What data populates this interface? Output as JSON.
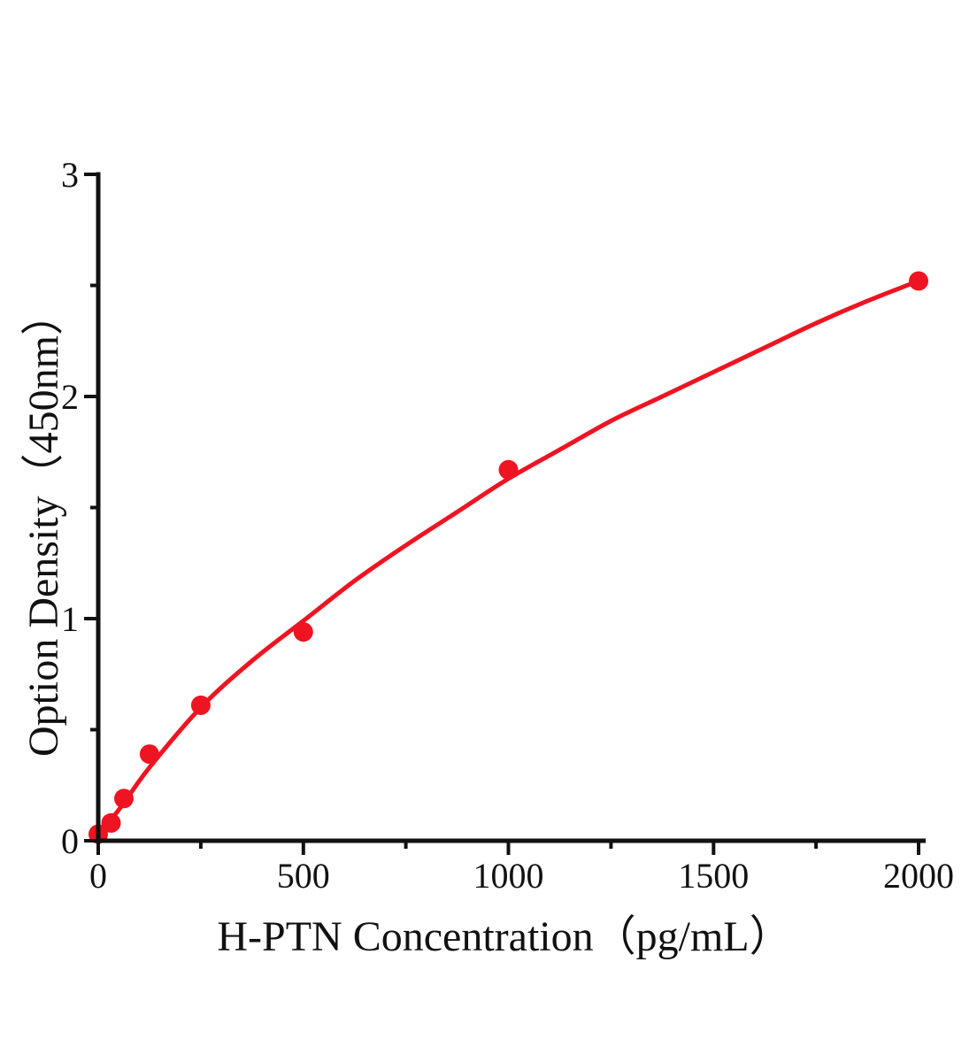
{
  "figure": {
    "background": "#ffffff"
  },
  "chart_data": {
    "type": "scatter",
    "title": "",
    "xlabel": "H-PTN Concentration（pg/mL）",
    "ylabel": "Option Density（450nm）",
    "xlim": [
      0,
      2000
    ],
    "ylim": [
      0,
      3
    ],
    "x_major_ticks": [
      0,
      500,
      1000,
      1500,
      2000
    ],
    "x_minor_ticks": [
      250,
      750,
      1250,
      1750
    ],
    "y_major_ticks": [
      0,
      1,
      2,
      3
    ],
    "y_minor_ticks": [
      0.5,
      1.5,
      2.5
    ],
    "grid": false,
    "legend": "none",
    "axis_color": "#111111",
    "series": [
      {
        "name": "standard-points",
        "type": "scatter",
        "color": "#ee1421",
        "marker": "circle",
        "points": [
          [
            0,
            0.03
          ],
          [
            31.25,
            0.08
          ],
          [
            62.5,
            0.19
          ],
          [
            125,
            0.39
          ],
          [
            250,
            0.61
          ],
          [
            500,
            0.94
          ],
          [
            1000,
            1.67
          ],
          [
            2000,
            2.52
          ]
        ]
      },
      {
        "name": "fitted-curve",
        "type": "line",
        "color": "#ee1421",
        "points": [
          [
            0,
            0.02
          ],
          [
            31.25,
            0.095
          ],
          [
            62.5,
            0.17
          ],
          [
            125,
            0.33
          ],
          [
            250,
            0.6
          ],
          [
            375,
            0.81
          ],
          [
            500,
            0.99
          ],
          [
            625,
            1.17
          ],
          [
            750,
            1.33
          ],
          [
            875,
            1.48
          ],
          [
            1000,
            1.63
          ],
          [
            1125,
            1.76
          ],
          [
            1250,
            1.89
          ],
          [
            1375,
            2.0
          ],
          [
            1500,
            2.11
          ],
          [
            1625,
            2.22
          ],
          [
            1750,
            2.33
          ],
          [
            1875,
            2.43
          ],
          [
            2000,
            2.52
          ]
        ]
      }
    ]
  }
}
